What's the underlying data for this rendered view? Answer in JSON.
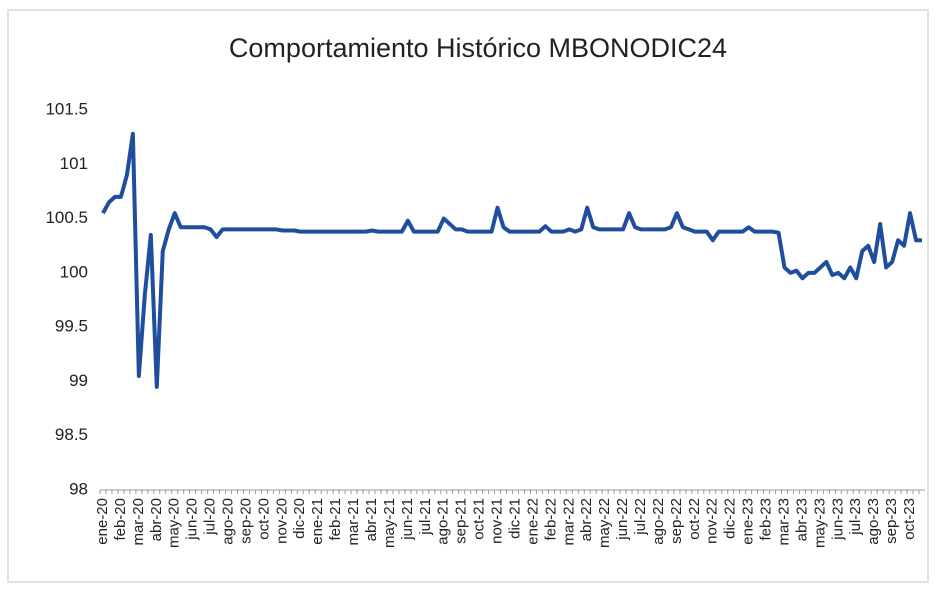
{
  "chart_data": {
    "type": "line",
    "title": "Comportamiento Histórico MBONODIC24",
    "categories": [
      "ene-20",
      null,
      null,
      "feb-20",
      null,
      null,
      "mar-20",
      null,
      null,
      "abr-20",
      null,
      null,
      "may-20",
      null,
      null,
      "jun-20",
      null,
      null,
      "jul-20",
      null,
      null,
      "ago-20",
      null,
      null,
      "sep-20",
      null,
      null,
      "oct-20",
      null,
      null,
      "nov-20",
      null,
      null,
      "dic-20",
      null,
      null,
      "ene-21",
      null,
      null,
      "feb-21",
      null,
      null,
      "mar-21",
      null,
      null,
      "abr-21",
      null,
      null,
      "may-21",
      null,
      null,
      "jun-21",
      null,
      null,
      "jul-21",
      null,
      null,
      "ago-21",
      null,
      null,
      "sep-21",
      null,
      null,
      "oct-21",
      null,
      null,
      "nov-21",
      null,
      null,
      "dic-21",
      null,
      null,
      "ene-22",
      null,
      null,
      "feb-22",
      null,
      null,
      "mar-22",
      null,
      null,
      "abr-22",
      null,
      null,
      "may-22",
      null,
      null,
      "jun-22",
      null,
      null,
      "jul-22",
      null,
      null,
      "ago-22",
      null,
      null,
      "sep-22",
      null,
      null,
      "oct-22",
      null,
      null,
      "nov-22",
      null,
      null,
      "dic-22",
      null,
      null,
      "ene-23",
      null,
      null,
      "feb-23",
      null,
      null,
      "mar-23",
      null,
      null,
      "abr-23",
      null,
      null,
      "may-23",
      null,
      null,
      "jun-23",
      null,
      null,
      "jul-23",
      null,
      null,
      "ago-23",
      null,
      null,
      "sep-23",
      null,
      null,
      "oct-23",
      null,
      null
    ],
    "values": [
      100.55,
      100.65,
      100.7,
      100.7,
      100.9,
      101.28,
      99.05,
      99.8,
      100.35,
      98.95,
      100.2,
      100.4,
      100.55,
      100.42,
      100.42,
      100.42,
      100.42,
      100.42,
      100.4,
      100.33,
      100.4,
      100.4,
      100.4,
      100.4,
      100.4,
      100.4,
      100.4,
      100.4,
      100.4,
      100.4,
      100.39,
      100.39,
      100.39,
      100.38,
      100.38,
      100.38,
      100.38,
      100.38,
      100.38,
      100.38,
      100.38,
      100.38,
      100.38,
      100.38,
      100.38,
      100.39,
      100.38,
      100.38,
      100.38,
      100.38,
      100.38,
      100.48,
      100.38,
      100.38,
      100.38,
      100.38,
      100.38,
      100.5,
      100.45,
      100.4,
      100.4,
      100.38,
      100.38,
      100.38,
      100.38,
      100.38,
      100.6,
      100.42,
      100.38,
      100.38,
      100.38,
      100.38,
      100.38,
      100.38,
      100.43,
      100.38,
      100.38,
      100.38,
      100.4,
      100.38,
      100.4,
      100.6,
      100.42,
      100.4,
      100.4,
      100.4,
      100.4,
      100.4,
      100.55,
      100.42,
      100.4,
      100.4,
      100.4,
      100.4,
      100.4,
      100.42,
      100.55,
      100.42,
      100.4,
      100.38,
      100.38,
      100.38,
      100.3,
      100.38,
      100.38,
      100.38,
      100.38,
      100.38,
      100.42,
      100.38,
      100.38,
      100.38,
      100.38,
      100.37,
      100.05,
      100.0,
      100.02,
      99.95,
      100.0,
      100.0,
      100.05,
      100.1,
      99.98,
      100.0,
      99.95,
      100.05,
      99.95,
      100.2,
      100.25,
      100.1,
      100.45,
      100.05,
      100.1,
      100.3,
      100.25,
      100.55,
      100.3,
      100.3
    ],
    "color": "#1f4e9c",
    "ylim": [
      98,
      101.5
    ],
    "yticks": [
      98,
      98.5,
      99,
      99.5,
      100,
      100.5,
      101,
      101.5
    ],
    "grid": false
  }
}
